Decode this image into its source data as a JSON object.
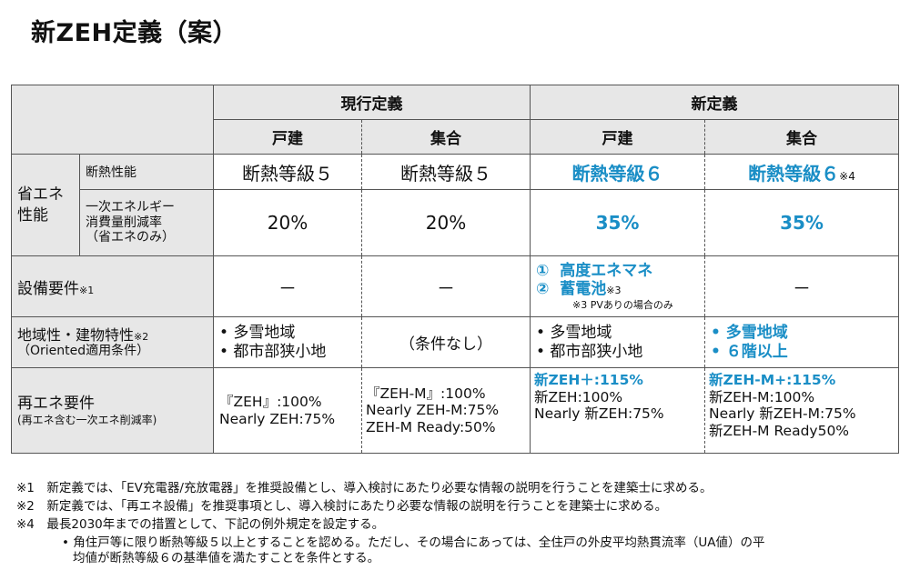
{
  "title": "新ZEH定義（案）",
  "headers": {
    "current": "現行定義",
    "new": "新定義",
    "detached": "戸建",
    "collective": "集合"
  },
  "rows": {
    "energy": {
      "group": "省エネ\n性能",
      "insulation": {
        "label": "断熱性能",
        "cur_detached": "断熱等級５",
        "cur_collective": "断熱等級５",
        "new_detached": "断熱等級６",
        "new_collective": "断熱等級６",
        "new_collective_note": "※4"
      },
      "reduction": {
        "label_1": "一次エネルギー",
        "label_2": "消費量削減率",
        "label_3": "（省エネのみ）",
        "cur_detached": "20%",
        "cur_collective": "20%",
        "new_detached": "35%",
        "new_collective": "35%"
      }
    },
    "equipment": {
      "label": "設備要件",
      "label_note": "※1",
      "cur_detached": "－",
      "cur_collective": "－",
      "new_detached_1_num": "①",
      "new_detached_1": "高度エネマネ",
      "new_detached_2_num": "②",
      "new_detached_2": "蓄電池",
      "new_detached_2_note": "※3",
      "new_detached_sub": "※3 PVありの場合のみ",
      "new_collective": "－"
    },
    "regional": {
      "label": "地域性・建物特性",
      "label_note": "※2",
      "label_sub": "（Oriented適用条件）",
      "cur_detached_1": "•  多雪地域",
      "cur_detached_2": "•  都市部狭小地",
      "cur_collective": "（条件なし）",
      "new_detached_1": "•  多雪地域",
      "new_detached_2": "•  都市部狭小地",
      "new_collective_1": "•  多雪地域",
      "new_collective_2": "•  ６階以上"
    },
    "renewable": {
      "label": "再エネ要件",
      "label_sub": "(再エネ含む一次エネ削減率)",
      "cur_detached_1": "『ZEH』:100%",
      "cur_detached_2": "Nearly ZEH:75%",
      "cur_collective_1": "『ZEH-M』:100%",
      "cur_collective_2": "Nearly ZEH-M:75%",
      "cur_collective_3": "ZEH-M Ready:50%",
      "new_detached_1": "新ZEH＋:115%",
      "new_detached_2": "新ZEH:100%",
      "new_detached_3": "Nearly 新ZEH:75%",
      "new_collective_1": "新ZEH-M+:115%",
      "new_collective_2": "新ZEH-M:100%",
      "new_collective_3": "Nearly 新ZEH-M:75%",
      "new_collective_4": "新ZEH-M Ready50%"
    }
  },
  "footnotes": [
    "※1　新定義では、「EV充電器/充放電器」を推奨設備とし、導入検討にあたり必要な情報の説明を行うことを建築士に求める。",
    "※2　新定義では、「再エネ設備」を推奨事項とし、導入検討にあたり必要な情報の説明を行うことを建築士に求める。",
    "※4　最長2030年までの措置として、下記の例外規定を設定する。",
    "•  角住戸等に限り断熱等級５以上とすることを認める。ただし、その場合にあっては、全住戸の外皮平均熱貫流率（UA値）の平",
    "均値が断熱等級６の基準値を満たすことを条件とする。"
  ],
  "colors": {
    "accent": "#1a8ec6",
    "header_bg": "#e7e7e7",
    "border": "#555555"
  }
}
